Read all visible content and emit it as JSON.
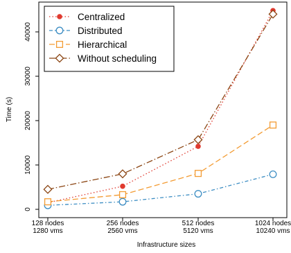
{
  "chart_data": {
    "type": "line",
    "xlabel": "Infrastructure sizes",
    "ylabel": "Time (s)",
    "categories": [
      [
        "128 nodes",
        "1280 vms"
      ],
      [
        "256 nodes",
        "2560 vms"
      ],
      [
        "512 nodes",
        "5120 vms"
      ],
      [
        "1024 nodes",
        "10240 vms"
      ]
    ],
    "ylim": [
      0,
      46000
    ],
    "yticks": [
      0,
      10000,
      20000,
      30000,
      40000
    ],
    "grid": false,
    "legend_position": "top-left",
    "series": [
      {
        "name": "Centralized",
        "values": [
          1500,
          5200,
          14200,
          44800
        ],
        "color": "#e03a2f",
        "dash": "1.5,3",
        "marker": "filled-circle"
      },
      {
        "name": "Distributed",
        "values": [
          900,
          1700,
          3500,
          7900
        ],
        "color": "#3c8dc3",
        "dash": "5,3,1.5,3",
        "marker": "open-circle"
      },
      {
        "name": "Hierarchical",
        "values": [
          1700,
          3300,
          8100,
          19000
        ],
        "color": "#f39b32",
        "dash": "8,4",
        "marker": "open-square"
      },
      {
        "name": "Without scheduling",
        "values": [
          4500,
          8000,
          15700,
          44000
        ],
        "color": "#8b4513",
        "dash": "9,3,1.5,3",
        "marker": "open-diamond"
      }
    ]
  }
}
